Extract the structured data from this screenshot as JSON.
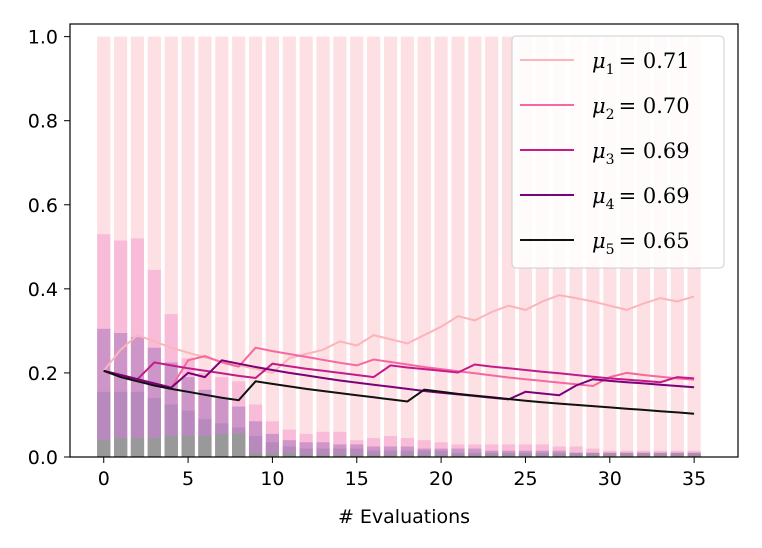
{
  "chart_data": {
    "type": "bar+line",
    "xlabel": "# Evaluations",
    "ylabel": "",
    "xlim": [
      -2,
      37.6
    ],
    "ylim": [
      0,
      1.03
    ],
    "x_ticks": [
      0,
      5,
      10,
      15,
      20,
      25,
      30,
      35
    ],
    "x_tick_labels": [
      "0",
      "5",
      "10",
      "15",
      "20",
      "25",
      "30",
      "35"
    ],
    "y_ticks": [
      0.0,
      0.2,
      0.4,
      0.6,
      0.8,
      1.0
    ],
    "y_tick_labels": [
      "0.0",
      "0.2",
      "0.4",
      "0.6",
      "0.8",
      "1.0"
    ],
    "grid": false,
    "legend_position": "top-right",
    "colors": {
      "bar_background": "#fde0e3",
      "bar_layer1": "#f9bcd8",
      "bar_layer2": "#ce95c8",
      "bar_layer3": "#b789bd",
      "bar_layer4": "#999999",
      "series": [
        "#fbb4b9",
        "#f768a1",
        "#c51b8a",
        "#7a0177",
        "#111111"
      ]
    },
    "bars": {
      "x": [
        0,
        1,
        2,
        3,
        4,
        5,
        6,
        7,
        8,
        9,
        10,
        11,
        12,
        13,
        14,
        15,
        16,
        17,
        18,
        19,
        20,
        21,
        22,
        23,
        24,
        25,
        26,
        27,
        28,
        29,
        30,
        31,
        32,
        33,
        34,
        35
      ],
      "background": [
        1,
        1,
        1,
        1,
        1,
        1,
        1,
        1,
        1,
        1,
        1,
        1,
        1,
        1,
        1,
        1,
        1,
        1,
        1,
        1,
        1,
        1,
        1,
        1,
        1,
        1,
        1,
        1,
        1,
        1,
        1,
        1,
        1,
        1,
        1,
        1
      ],
      "layer1": [
        0.53,
        0.515,
        0.52,
        0.445,
        0.34,
        0.235,
        0.2,
        0.19,
        0.18,
        0.125,
        0.085,
        0.065,
        0.055,
        0.06,
        0.06,
        0.04,
        0.045,
        0.05,
        0.045,
        0.04,
        0.035,
        0.03,
        0.03,
        0.03,
        0.03,
        0.03,
        0.03,
        0.025,
        0.025,
        0.02,
        0.015,
        0.015,
        0.015,
        0.015,
        0.015,
        0.015
      ],
      "layer2": [
        0.305,
        0.295,
        0.285,
        0.26,
        0.225,
        0.19,
        0.16,
        0.14,
        0.12,
        0.085,
        0.055,
        0.04,
        0.035,
        0.035,
        0.03,
        0.03,
        0.025,
        0.025,
        0.025,
        0.02,
        0.02,
        0.02,
        0.02,
        0.015,
        0.015,
        0.015,
        0.015,
        0.015,
        0.01,
        0.01,
        0.01,
        0.01,
        0.01,
        0.01,
        0.01,
        0.01
      ],
      "layer3": [
        0.155,
        0.155,
        0.155,
        0.14,
        0.125,
        0.11,
        0.09,
        0.08,
        0.07,
        0.05,
        0.035,
        0.025,
        0.02,
        0.02,
        0.02,
        0.02,
        0.015,
        0.015,
        0.015,
        0.015,
        0.015,
        0.01,
        0.01,
        0.01,
        0.01,
        0.01,
        0.01,
        0.01,
        0.01,
        0.01,
        0.01,
        0.01,
        0.01,
        0.01,
        0.01,
        0.01
      ],
      "layer4": [
        0.04,
        0.045,
        0.045,
        0.045,
        0.05,
        0.05,
        0.05,
        0.055,
        0.055,
        0.01,
        0.01,
        0.01,
        0.005,
        0.005,
        0.005,
        0.005,
        0.005,
        0.005,
        0.005,
        0.005,
        0.005,
        0.005,
        0.005,
        0.005,
        0.005,
        0.005,
        0.005,
        0.005,
        0.005,
        0.005,
        0.005,
        0.005,
        0.005,
        0.005,
        0.005,
        0.005
      ]
    },
    "series": [
      {
        "name": "μ1",
        "legend_value": "= 0.71",
        "x": [
          0,
          1,
          2,
          3,
          4,
          5,
          6,
          7,
          8,
          9,
          10,
          11,
          12,
          13,
          14,
          15,
          16,
          17,
          18,
          19,
          20,
          21,
          22,
          23,
          24,
          25,
          26,
          27,
          28,
          29,
          30,
          31,
          32,
          33,
          34,
          35
        ],
        "values": [
          0.205,
          0.255,
          0.29,
          0.275,
          0.26,
          0.248,
          0.237,
          0.227,
          0.218,
          0.21,
          0.2,
          0.235,
          0.245,
          0.255,
          0.275,
          0.265,
          0.29,
          0.28,
          0.27,
          0.29,
          0.31,
          0.335,
          0.325,
          0.345,
          0.36,
          0.35,
          0.37,
          0.385,
          0.378,
          0.37,
          0.36,
          0.35,
          0.365,
          0.378,
          0.37,
          0.382
        ]
      },
      {
        "name": "μ2",
        "legend_value": "= 0.70",
        "x": [
          0,
          1,
          2,
          3,
          4,
          5,
          6,
          7,
          8,
          9,
          10,
          11,
          12,
          13,
          14,
          15,
          16,
          17,
          18,
          19,
          20,
          21,
          22,
          23,
          24,
          25,
          26,
          27,
          28,
          29,
          30,
          31,
          32,
          33,
          34,
          35
        ],
        "values": [
          0.205,
          0.195,
          0.185,
          0.175,
          0.165,
          0.23,
          0.24,
          0.225,
          0.215,
          0.26,
          0.252,
          0.245,
          0.238,
          0.231,
          0.224,
          0.218,
          0.232,
          0.226,
          0.22,
          0.214,
          0.209,
          0.204,
          0.199,
          0.194,
          0.189,
          0.185,
          0.181,
          0.177,
          0.173,
          0.169,
          0.19,
          0.2,
          0.195,
          0.191,
          0.187,
          0.184
        ]
      },
      {
        "name": "μ3",
        "legend_value": "= 0.69",
        "x": [
          0,
          1,
          2,
          3,
          4,
          5,
          6,
          7,
          8,
          9,
          10,
          11,
          12,
          13,
          14,
          15,
          16,
          17,
          18,
          19,
          20,
          21,
          22,
          23,
          24,
          25,
          26,
          27,
          28,
          29,
          30,
          31,
          32,
          33,
          34,
          35
        ],
        "values": [
          0.205,
          0.195,
          0.185,
          0.225,
          0.218,
          0.211,
          0.205,
          0.199,
          0.193,
          0.188,
          0.222,
          0.216,
          0.21,
          0.205,
          0.2,
          0.195,
          0.19,
          0.218,
          0.213,
          0.209,
          0.205,
          0.201,
          0.22,
          0.215,
          0.211,
          0.207,
          0.203,
          0.199,
          0.195,
          0.191,
          0.187,
          0.184,
          0.181,
          0.178,
          0.19,
          0.187
        ]
      },
      {
        "name": "μ4",
        "legend_value": "= 0.69",
        "x": [
          0,
          1,
          2,
          3,
          4,
          5,
          6,
          7,
          8,
          9,
          10,
          11,
          12,
          13,
          14,
          15,
          16,
          17,
          18,
          19,
          20,
          21,
          22,
          23,
          24,
          25,
          26,
          27,
          28,
          29,
          30,
          31,
          32,
          33,
          34,
          35
        ],
        "values": [
          0.205,
          0.195,
          0.185,
          0.175,
          0.165,
          0.2,
          0.19,
          0.23,
          0.222,
          0.214,
          0.207,
          0.2,
          0.194,
          0.188,
          0.182,
          0.177,
          0.172,
          0.167,
          0.162,
          0.157,
          0.153,
          0.149,
          0.145,
          0.141,
          0.137,
          0.155,
          0.151,
          0.147,
          0.17,
          0.185,
          0.181,
          0.178,
          0.175,
          0.172,
          0.169,
          0.166
        ]
      },
      {
        "name": "μ5",
        "legend_value": "= 0.65",
        "x": [
          0,
          1,
          2,
          3,
          4,
          5,
          6,
          7,
          8,
          9,
          10,
          11,
          12,
          13,
          14,
          15,
          16,
          17,
          18,
          19,
          20,
          21,
          22,
          23,
          24,
          25,
          26,
          27,
          28,
          29,
          30,
          31,
          32,
          33,
          34,
          35
        ],
        "values": [
          0.205,
          0.19,
          0.18,
          0.17,
          0.162,
          0.155,
          0.148,
          0.141,
          0.135,
          0.18,
          0.174,
          0.168,
          0.162,
          0.157,
          0.152,
          0.147,
          0.142,
          0.137,
          0.132,
          0.16,
          0.155,
          0.15,
          0.146,
          0.142,
          0.138,
          0.134,
          0.13,
          0.127,
          0.124,
          0.121,
          0.118,
          0.115,
          0.112,
          0.109,
          0.106,
          0.103
        ]
      }
    ]
  }
}
